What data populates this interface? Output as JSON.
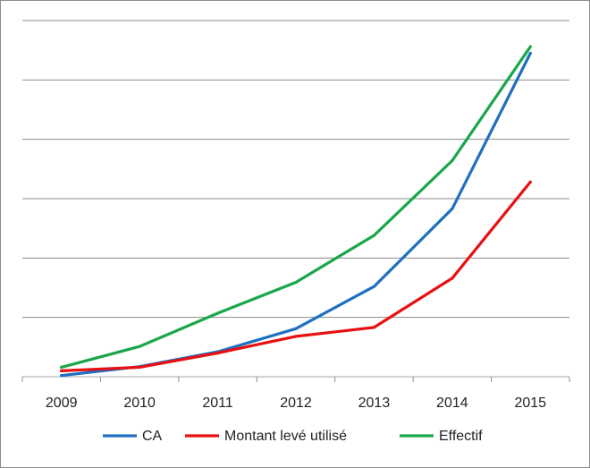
{
  "chart_data": {
    "type": "line",
    "categories": [
      "2009",
      "2010",
      "2011",
      "2012",
      "2013",
      "2014",
      "2015"
    ],
    "ylim": [
      0,
      6
    ],
    "grid": true,
    "legend_position": "bottom",
    "series": [
      {
        "name": "CA",
        "color": "#1f6fc1",
        "values": [
          0.02,
          0.17,
          0.42,
          0.81,
          1.52,
          2.83,
          5.45
        ]
      },
      {
        "name": "Montant levé utilisé",
        "color": "#e81010",
        "values": [
          0.1,
          0.16,
          0.4,
          0.68,
          0.83,
          1.66,
          3.28
        ]
      },
      {
        "name": "Effectif",
        "color": "#1aa64a",
        "values": [
          0.16,
          0.51,
          1.07,
          1.59,
          2.38,
          3.64,
          5.56
        ]
      }
    ]
  }
}
